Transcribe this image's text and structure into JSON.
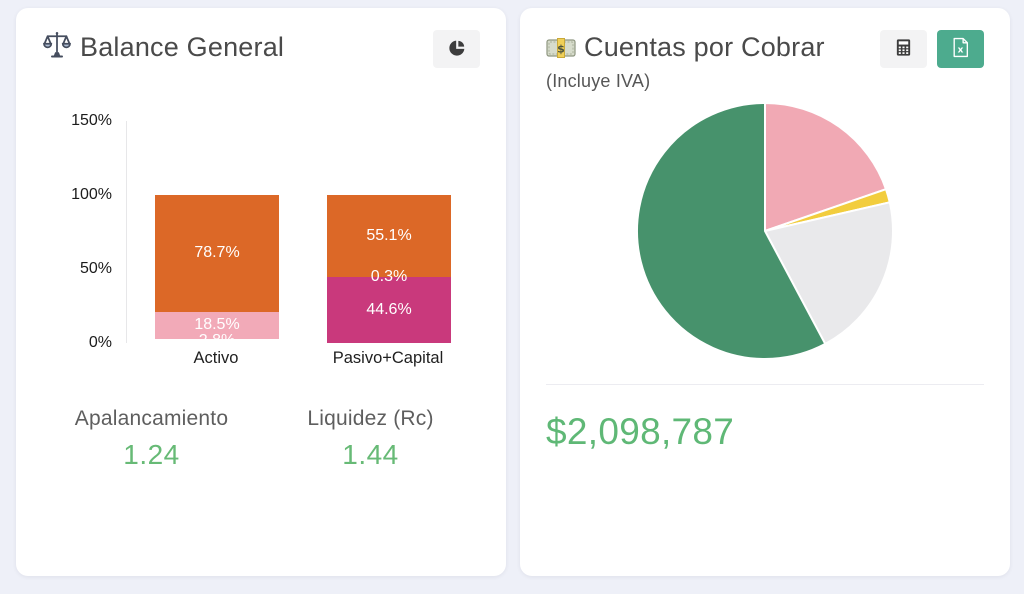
{
  "balance_card": {
    "title": "Balance General",
    "metrics": [
      {
        "label": "Apalancamiento",
        "value": "1.24"
      },
      {
        "label": "Liquidez (Rc)",
        "value": "1.44"
      }
    ]
  },
  "cuentas_card": {
    "title": "Cuentas por Cobrar",
    "subtitle": "(Incluye IVA)",
    "total": "$2,098,787"
  },
  "colors": {
    "page_bg": "#eef0f8",
    "card_bg": "#ffffff",
    "accent_green": "#67ba76",
    "total_green": "#5fb876",
    "excel_button_bg": "#4dab8e",
    "icon_button_bg": "#f3f3f4"
  },
  "chart_data": [
    {
      "type": "bar",
      "stacked": true,
      "title": "Balance General",
      "categories": [
        "Activo",
        "Pasivo+Capital"
      ],
      "ylabel": "",
      "xlabel": "",
      "ylim": [
        0,
        150
      ],
      "y_ticks": [
        {
          "value": 0,
          "label": "0%"
        },
        {
          "value": 50,
          "label": "50%"
        },
        {
          "value": 100,
          "label": "100%"
        },
        {
          "value": 150,
          "label": "150%"
        }
      ],
      "grid": false,
      "bars": [
        {
          "category": "Activo",
          "segments_bottom_to_top": [
            {
              "value": 2.8,
              "label": "2.8%",
              "color": "#ffffff"
            },
            {
              "value": 18.5,
              "label": "18.5%",
              "color": "#f2aab8"
            },
            {
              "value": 78.7,
              "label": "78.7%",
              "color": "#dc6827"
            }
          ]
        },
        {
          "category": "Pasivo+Capital",
          "segments_bottom_to_top": [
            {
              "value": 44.6,
              "label": "44.6%",
              "color": "#c9397c"
            },
            {
              "value": 0.3,
              "label": "0.3%",
              "color": "#f2aab8"
            },
            {
              "value": 55.1,
              "label": "55.1%",
              "color": "#dc6827"
            }
          ]
        }
      ]
    },
    {
      "type": "pie",
      "title": "Cuentas por Cobrar (Incluye IVA)",
      "total_label": "$2,098,787",
      "start_angle_deg_from_top": 0,
      "direction": "clockwise",
      "legend": "none",
      "slices": [
        {
          "name": "slice-pink",
          "percent": 19.7,
          "color": "#f1a9b4"
        },
        {
          "name": "slice-yellow",
          "percent": 1.7,
          "color": "#f2cd3e"
        },
        {
          "name": "slice-gray",
          "percent": 20.8,
          "color": "#e9e9eb"
        },
        {
          "name": "slice-green",
          "percent": 57.8,
          "color": "#47926c"
        }
      ]
    }
  ]
}
